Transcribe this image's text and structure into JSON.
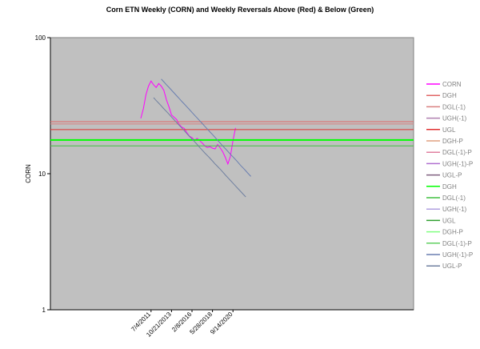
{
  "chart_data": {
    "type": "line",
    "title": "Corn ETN Weekly (CORN) and Weekly Reversals Above (Red) & Below (Green)",
    "y_label": "CORN",
    "log_scale": true,
    "ylim": [
      1,
      100
    ],
    "yticks": [
      1,
      10,
      100
    ],
    "categories": [
      null,
      null,
      null,
      null,
      "7/4/2011",
      null,
      null,
      null,
      null,
      null,
      null,
      null,
      "10/21/2013",
      null,
      null,
      null,
      null,
      null,
      null,
      null,
      "2/8/2016",
      null,
      null,
      null,
      null,
      null,
      null,
      null,
      "5/28/2018",
      null,
      null,
      null,
      null,
      null,
      null,
      null,
      "9/14/2020",
      null,
      null,
      null,
      null,
      null,
      null,
      null
    ],
    "legend": "right",
    "series": [
      {
        "name": "CORN",
        "color": "#ff00ff",
        "values": [
          25.5,
          30,
          38,
          44,
          48,
          45,
          43,
          46,
          44,
          41,
          35,
          31,
          27,
          26,
          25,
          23,
          22,
          21.5,
          20,
          18.9,
          18.4,
          17.6,
          18.2,
          17.5,
          16.8,
          16,
          15.6,
          15.8,
          15.4,
          15.2,
          16.4,
          15.5,
          14.5,
          13.2,
          11.8,
          13.4,
          17.5,
          21.7,
          null,
          null,
          null,
          null,
          null,
          null
        ]
      },
      {
        "name": "DGH",
        "color": "#e06666",
        "level": 24.1
      },
      {
        "name": "DGL(-1)",
        "color": "#d98080",
        "level": 23.2
      },
      {
        "name": "UGH(-1)",
        "color": "#b080b0"
      },
      {
        "name": "UGL",
        "color": "#e03030",
        "level": 21.1
      },
      {
        "name": "DGH-P",
        "color": "#e0a080"
      },
      {
        "name": "DGL(-1)-P",
        "color": "#e080a0"
      },
      {
        "name": "UGH(-1)-P",
        "color": "#b070d0"
      },
      {
        "name": "UGL-P",
        "color": "#806080"
      },
      {
        "name": "DGH",
        "color": "#00ff00",
        "level": 17.7
      },
      {
        "name": "DGL(-1)",
        "color": "#40c040",
        "level": 16.0
      },
      {
        "name": "UGH(-1)",
        "color": "#b0a0e0"
      },
      {
        "name": "UGL",
        "color": "#30a030"
      },
      {
        "name": "DGH-P",
        "color": "#80ff80"
      },
      {
        "name": "DGL(-1)-P",
        "color": "#60d060"
      },
      {
        "name": "UGH(-1)-P",
        "color": "#6a7fb0",
        "values": [
          null,
          null,
          null,
          null,
          null,
          null,
          null,
          null,
          49.6,
          47.3,
          45.1,
          43.1,
          41.1,
          39.2,
          37.4,
          35.7,
          34.0,
          32.5,
          31.0,
          29.6,
          28.2,
          26.9,
          25.7,
          24.5,
          23.4,
          22.3,
          21.3,
          20.3,
          19.4,
          18.5,
          17.6,
          16.8,
          16.0,
          15.3,
          14.6,
          13.9,
          13.3,
          12.7,
          12.1,
          11.5,
          11.0,
          10.5,
          10.0,
          9.55
        ]
      },
      {
        "name": "UGL-P",
        "color": "#7080a0",
        "values": [
          null,
          null,
          null,
          null,
          null,
          36.2,
          34.5,
          33.0,
          31.5,
          30.0,
          28.7,
          27.4,
          26.1,
          24.9,
          23.8,
          22.7,
          21.7,
          20.7,
          19.7,
          18.8,
          18.0,
          17.2,
          16.4,
          15.6,
          14.9,
          14.2,
          13.6,
          13.0,
          12.4,
          11.8,
          11.3,
          10.8,
          10.3,
          9.8,
          9.35,
          8.93,
          8.52,
          8.13,
          7.76,
          7.41,
          7.07,
          6.75,
          null,
          null
        ]
      }
    ]
  }
}
